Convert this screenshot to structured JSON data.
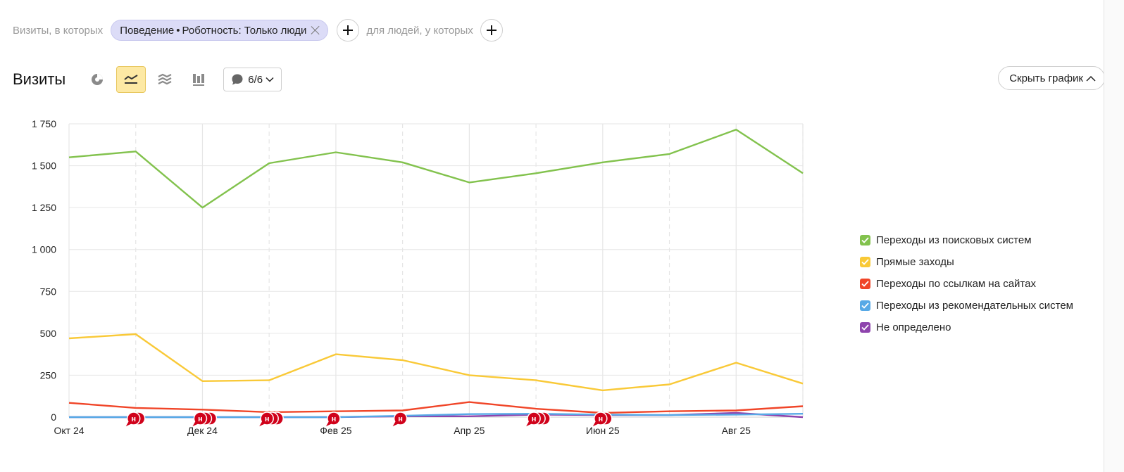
{
  "filters": {
    "visits_label": "Визиты, в которых",
    "chip_part1": "Поведение",
    "chip_dot": "•",
    "chip_part2": "Роботность: Только люди",
    "people_label": "для людей, у которых"
  },
  "toolbar": {
    "title": "Визиты",
    "comments_count": "6/6",
    "hide_chart": "Скрыть график"
  },
  "colors": {
    "search": "#82c24d",
    "direct": "#f9c937",
    "links": "#f04528",
    "recommend": "#57a9e6",
    "undefined": "#8e44ad",
    "annotation": "#d0021b"
  },
  "chart_data": {
    "type": "line",
    "y_ticks": [
      "1 750",
      "1 500",
      "1 250",
      "1 000",
      "750",
      "500",
      "250",
      "0"
    ],
    "ylim": [
      0,
      1750
    ],
    "x_tick_labels": [
      "Окт 24",
      "Дек 24",
      "Фев 25",
      "Апр 25",
      "Июн 25",
      "Авг 25"
    ],
    "x": [
      "Окт 24",
      "Ноя 24",
      "Дек 24",
      "Янв 25",
      "Фев 25",
      "Мар 25",
      "Апр 25",
      "Май 25",
      "Июн 25",
      "Июл 25",
      "Авг 25",
      "Сен 25"
    ],
    "series": [
      {
        "name": "Переходы из поисковых систем",
        "color": "#82c24d",
        "values": [
          1550,
          1585,
          1250,
          1515,
          1580,
          1520,
          1400,
          1455,
          1520,
          1570,
          1715,
          1455
        ]
      },
      {
        "name": "Прямые заходы",
        "color": "#f9c937",
        "values": [
          470,
          495,
          215,
          220,
          375,
          340,
          250,
          220,
          160,
          195,
          325,
          200
        ]
      },
      {
        "name": "Переходы по ссылкам на сайтах",
        "color": "#f04528",
        "values": [
          85,
          55,
          45,
          30,
          35,
          40,
          90,
          50,
          25,
          35,
          40,
          65
        ]
      },
      {
        "name": "Переходы из рекомендательных систем",
        "color": "#57a9e6",
        "values": [
          0,
          0,
          0,
          0,
          0,
          8,
          18,
          20,
          15,
          12,
          15,
          20
        ]
      },
      {
        "name": "Не определено",
        "color": "#8e44ad",
        "values": [
          0,
          0,
          0,
          0,
          0,
          5,
          5,
          15,
          12,
          12,
          25,
          0
        ]
      }
    ],
    "annotations": [
      {
        "x": "Ноя 24",
        "label": "н",
        "count": 2
      },
      {
        "x": "Дек 24",
        "label": "н",
        "count": 3
      },
      {
        "x": "Янв 25",
        "label": "н",
        "count": 3
      },
      {
        "x": "Фев 25",
        "label": "н",
        "count": 1
      },
      {
        "x": "Мар 25",
        "label": "н",
        "count": 1
      },
      {
        "x": "Май 25",
        "label": "н",
        "count": 3
      },
      {
        "x": "Июн 25",
        "label": "н",
        "count": 2
      }
    ],
    "grid": true,
    "legend_position": "right"
  }
}
